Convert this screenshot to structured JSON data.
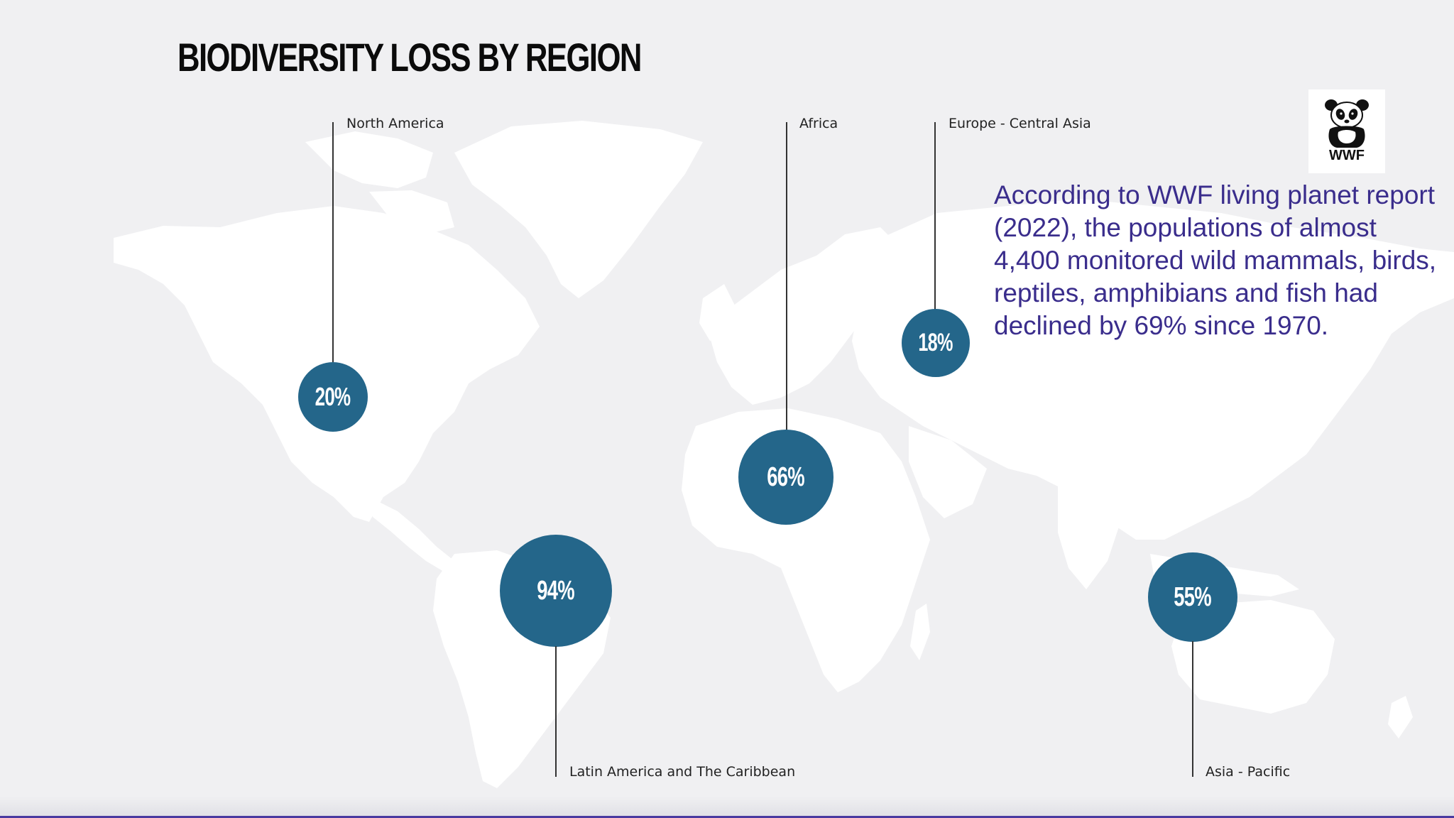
{
  "slide": {
    "title": "BIODIVERSITY LOSS BY REGION",
    "colors": {
      "background": "#f0f0f2",
      "map": "#ffffff",
      "bubble": "#24668a",
      "body_text": "#3a2d8c",
      "title": "#0b0b0b"
    }
  },
  "regions": [
    {
      "name": "North America",
      "value": "20%"
    },
    {
      "name": "Africa",
      "value": "66%"
    },
    {
      "name": "Europe - Central Asia",
      "value": "18%"
    },
    {
      "name": "Latin America and The Caribbean",
      "value": "94%"
    },
    {
      "name": "Asia - Pacific",
      "value": "55%"
    }
  ],
  "info": {
    "text": "According to WWF living planet report (2022), the populations of almost 4,400 monitored wild mammals, birds, reptiles, amphibians and fish had declined by 69% since 1970."
  },
  "logo": {
    "icon": "panda-icon",
    "text": "WWF"
  }
}
